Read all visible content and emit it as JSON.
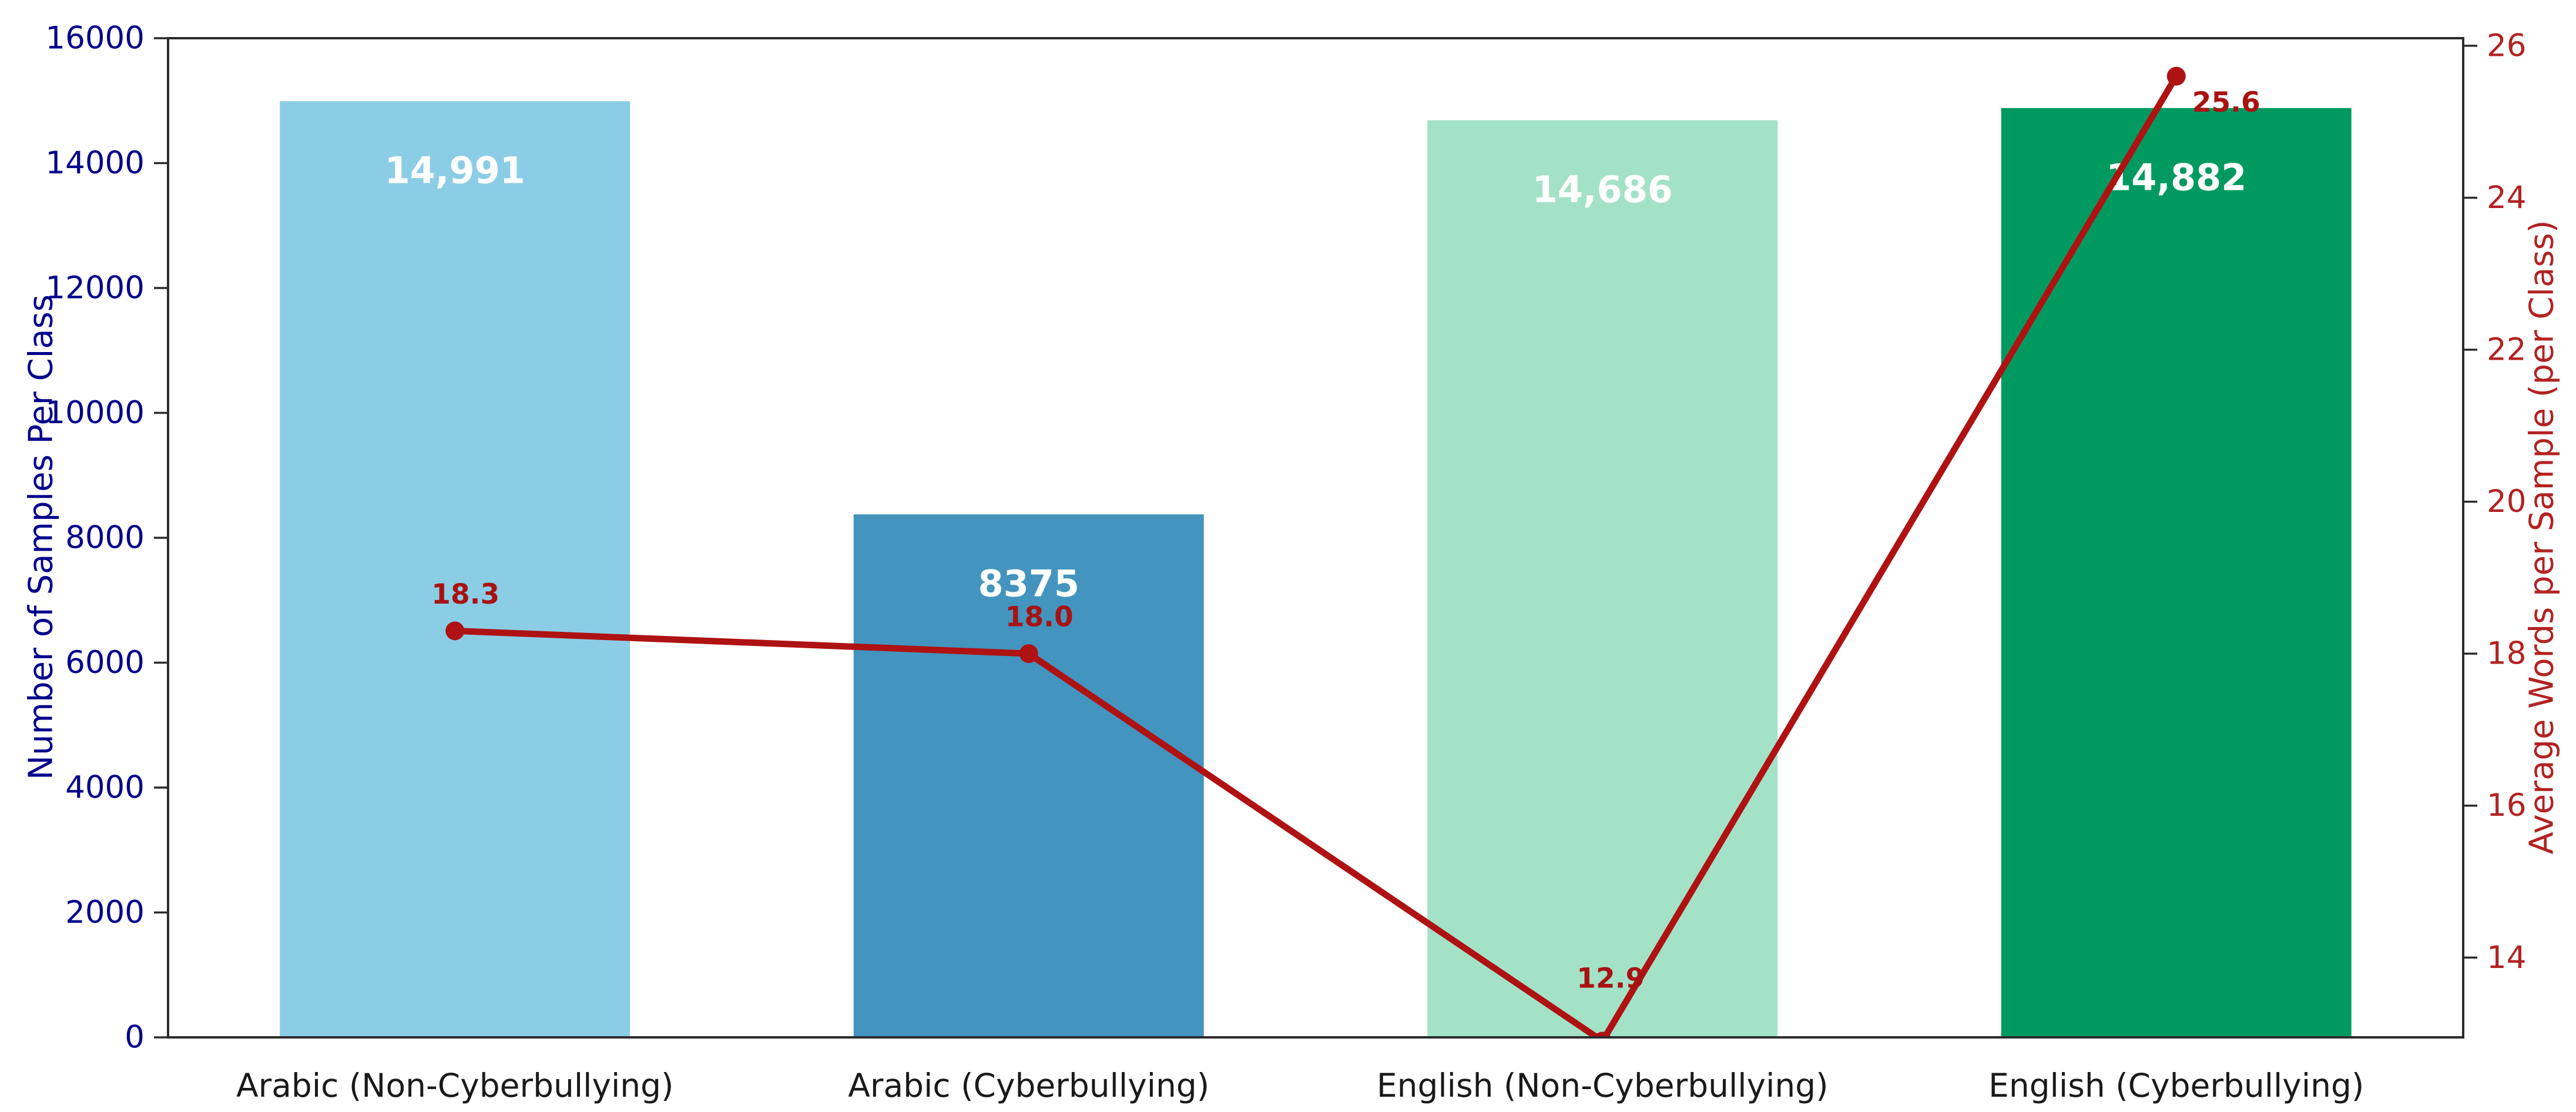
{
  "chart_data": {
    "type": "bar",
    "title": "",
    "categories": [
      "Arabic (Non-Cyberbullying)",
      "Arabic (Cyberbullying)",
      "English (Non-Cyberbullying)",
      "English (Cyberbullying)"
    ],
    "series": [
      {
        "name": "Number of Samples Per Class",
        "type": "bar",
        "yaxis": "left",
        "values": [
          14991,
          8375,
          14686,
          14882
        ],
        "value_labels": [
          "14,991",
          "8375",
          "14,686",
          "14,882"
        ],
        "bar_colors": [
          "#8CCDE6",
          "#4394BE",
          "#A3E2C7",
          "#009A61"
        ],
        "value_label_color": "#FFFFFF"
      },
      {
        "name": "Average Words per Sample (per Class)",
        "type": "line",
        "yaxis": "right",
        "values": [
          18.3,
          18.0,
          12.9,
          25.6
        ],
        "point_labels": [
          "18.3",
          "18.0",
          "12.9",
          "25.6"
        ],
        "color": "#AE1212",
        "point_label_color": "#A81212",
        "marker": "circle"
      }
    ],
    "left_axis": {
      "label": "Number of Samples Per Class",
      "color": "#00008B",
      "min": 0,
      "max": 16000,
      "ticks": [
        0,
        2000,
        4000,
        6000,
        8000,
        10000,
        12000,
        14000,
        16000
      ],
      "tick_labels": [
        "0",
        "2000",
        "4000",
        "6000",
        "8000",
        "10000",
        "12000",
        "14000",
        "16000"
      ]
    },
    "right_axis": {
      "label": "Average Words per Sample (per Class)",
      "color": "#B22222",
      "min": 12.95,
      "max": 26.1,
      "ticks": [
        14,
        16,
        18,
        20,
        22,
        24,
        26
      ],
      "tick_labels": [
        "14",
        "16",
        "18",
        "20",
        "22",
        "24",
        "26"
      ]
    },
    "x_axis": {
      "tick_label_color": "#1A1A1A"
    },
    "frame_color": "#2B2B2B",
    "grid": false,
    "legend": null
  }
}
